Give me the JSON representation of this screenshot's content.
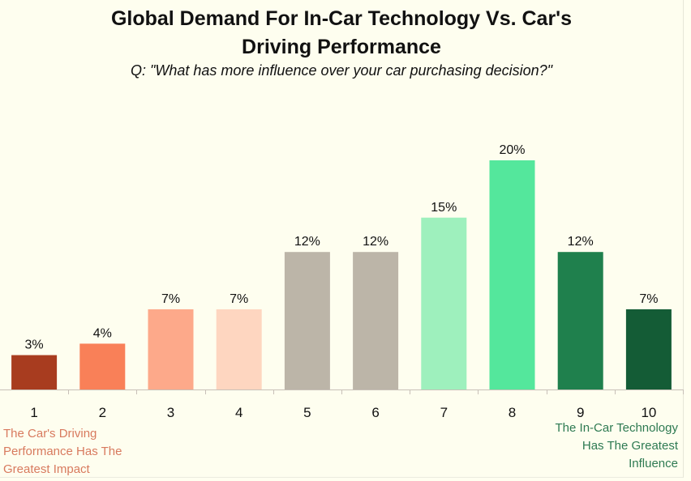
{
  "chart_data": {
    "type": "bar",
    "title_line1": "Global Demand For In-Car Technology Vs. Car's",
    "title_line2": "Driving Performance",
    "subtitle": "Q: \"What has more influence over your car purchasing decision?\"",
    "categories": [
      "1",
      "2",
      "3",
      "4",
      "5",
      "6",
      "7",
      "8",
      "9",
      "10"
    ],
    "values": [
      3,
      4,
      7,
      7,
      12,
      12,
      15,
      20,
      12,
      7
    ],
    "value_labels": [
      "3%",
      "4%",
      "7%",
      "7%",
      "12%",
      "12%",
      "15%",
      "20%",
      "12%",
      "7%"
    ],
    "colors": [
      "#a83c1f",
      "#f98058",
      "#fda98a",
      "#fed6c0",
      "#bcb5a8",
      "#bcb5a8",
      "#9ef0bd",
      "#54e79c",
      "#1f804d",
      "#145c36"
    ],
    "xlabel": "",
    "ylabel": "",
    "ylim": [
      0,
      20
    ],
    "grid": false,
    "annotations": {
      "left": [
        "The Car's Driving",
        "Performance Has The",
        "Greatest Impact"
      ],
      "right": [
        "The In-Car Technology",
        "Has The Greatest",
        "Influence"
      ]
    },
    "annotation_colors": {
      "left": "#d87a5e",
      "right": "#2e7a52"
    }
  }
}
